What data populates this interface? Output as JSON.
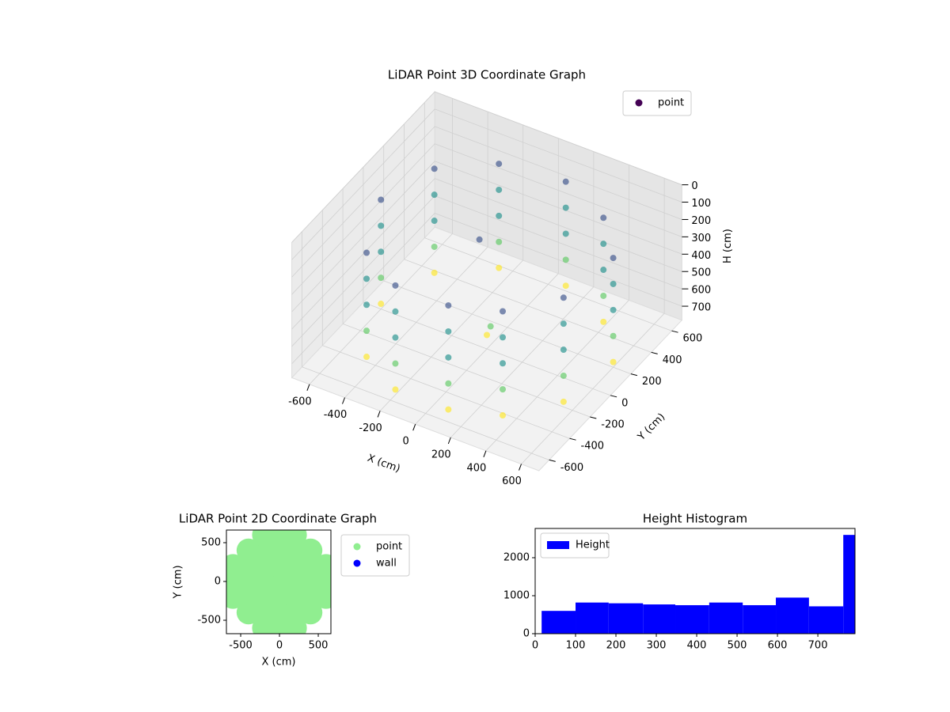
{
  "chart_data": [
    {
      "type": "scatter3d",
      "title": "LiDAR Point 3D Coordinate Graph",
      "xlabel": "X (cm)",
      "ylabel": "Y (cm)",
      "zlabel": "H (cm)",
      "xlim": [
        -700,
        700
      ],
      "ylim": [
        -700,
        700
      ],
      "zlim": [
        0,
        780
      ],
      "z_inverted": true,
      "xticks": [
        -600,
        -400,
        -200,
        0,
        200,
        400,
        600
      ],
      "yticks": [
        -600,
        -400,
        -200,
        0,
        200,
        400,
        600
      ],
      "zticks": [
        0,
        100,
        200,
        300,
        400,
        500,
        600,
        700
      ],
      "grid": true,
      "legend": "upper right",
      "colormap": [
        "#440154",
        "#3b528b",
        "#21918c",
        "#5ec962",
        "#fde725"
      ],
      "series": [
        {
          "name": "point",
          "color": "#440154",
          "x": [
            -600,
            -600,
            -600,
            -600,
            -600,
            -450,
            -450,
            -450,
            -450,
            -450,
            -200,
            -200,
            -200,
            -200,
            -200,
            100,
            100,
            100,
            100,
            100,
            350,
            350,
            350,
            350,
            350,
            550,
            550,
            550,
            550,
            550,
            600,
            600,
            600,
            600,
            600,
            400,
            400,
            400,
            400,
            400,
            100,
            100,
            100,
            100,
            100,
            -250,
            -250,
            -250,
            -250,
            -250,
            -500,
            -500,
            -500,
            -500,
            -500,
            0,
            50,
            -100
          ],
          "y": [
            0,
            0,
            0,
            0,
            0,
            -400,
            -400,
            -400,
            -400,
            -400,
            -550,
            -550,
            -550,
            -550,
            -550,
            -550,
            -550,
            -550,
            -550,
            -550,
            -450,
            -450,
            -450,
            -450,
            -450,
            -200,
            -200,
            -200,
            -200,
            -200,
            200,
            200,
            200,
            200,
            200,
            450,
            450,
            450,
            450,
            450,
            600,
            600,
            600,
            600,
            600,
            550,
            550,
            550,
            550,
            550,
            350,
            350,
            350,
            350,
            350,
            0,
            -50,
            100
          ],
          "z": [
            150,
            300,
            450,
            600,
            750,
            150,
            300,
            450,
            600,
            750,
            150,
            300,
            450,
            600,
            750,
            150,
            300,
            450,
            600,
            750,
            150,
            300,
            450,
            600,
            750,
            150,
            300,
            450,
            600,
            750,
            150,
            300,
            450,
            600,
            750,
            150,
            300,
            450,
            600,
            750,
            150,
            300,
            450,
            600,
            750,
            150,
            300,
            450,
            600,
            750,
            150,
            300,
            450,
            600,
            750,
            700,
            600,
            250
          ]
        }
      ]
    },
    {
      "type": "scatter",
      "title": "LiDAR Point 2D Coordinate Graph",
      "xlabel": "X (cm)",
      "ylabel": "Y (cm)",
      "xlim": [
        -684,
        663
      ],
      "ylim": [
        -673,
        663
      ],
      "xticks": [
        -500,
        0,
        500
      ],
      "yticks": [
        -500,
        0,
        500
      ],
      "legend": "outside right",
      "series": [
        {
          "name": "point",
          "color": "#90ee90",
          "x": [
            -600,
            -600,
            -600,
            -400,
            -400,
            -400,
            -400,
            -400,
            -200,
            -200,
            -200,
            -200,
            -200,
            -200,
            -200,
            0,
            0,
            0,
            0,
            0,
            0,
            0,
            200,
            200,
            200,
            200,
            200,
            200,
            200,
            400,
            400,
            400,
            400,
            400,
            600,
            600,
            600
          ],
          "y": [
            -200,
            0,
            200,
            -400,
            -200,
            0,
            200,
            400,
            -600,
            -400,
            -200,
            0,
            200,
            400,
            600,
            -600,
            -400,
            -200,
            0,
            200,
            400,
            600,
            -600,
            -400,
            -200,
            0,
            200,
            400,
            600,
            -400,
            -200,
            0,
            200,
            400,
            -200,
            0,
            200
          ]
        },
        {
          "name": "wall",
          "color": "#0000ff",
          "x": [],
          "y": []
        }
      ]
    },
    {
      "type": "histogram",
      "title": "Height Histogram",
      "name": "Height",
      "color": "#0000ff",
      "legend": "upper left",
      "bins": [
        16,
        100,
        182,
        267,
        347,
        431,
        514,
        596,
        678,
        763,
        792
      ],
      "values": [
        600,
        820,
        800,
        770,
        750,
        820,
        750,
        950,
        720,
        2600
      ],
      "xlim": [
        0,
        792
      ],
      "ylim": [
        0,
        2770
      ],
      "xticks": [
        0,
        100,
        200,
        300,
        400,
        500,
        600,
        700
      ],
      "yticks": [
        0,
        1000,
        2000
      ]
    }
  ]
}
